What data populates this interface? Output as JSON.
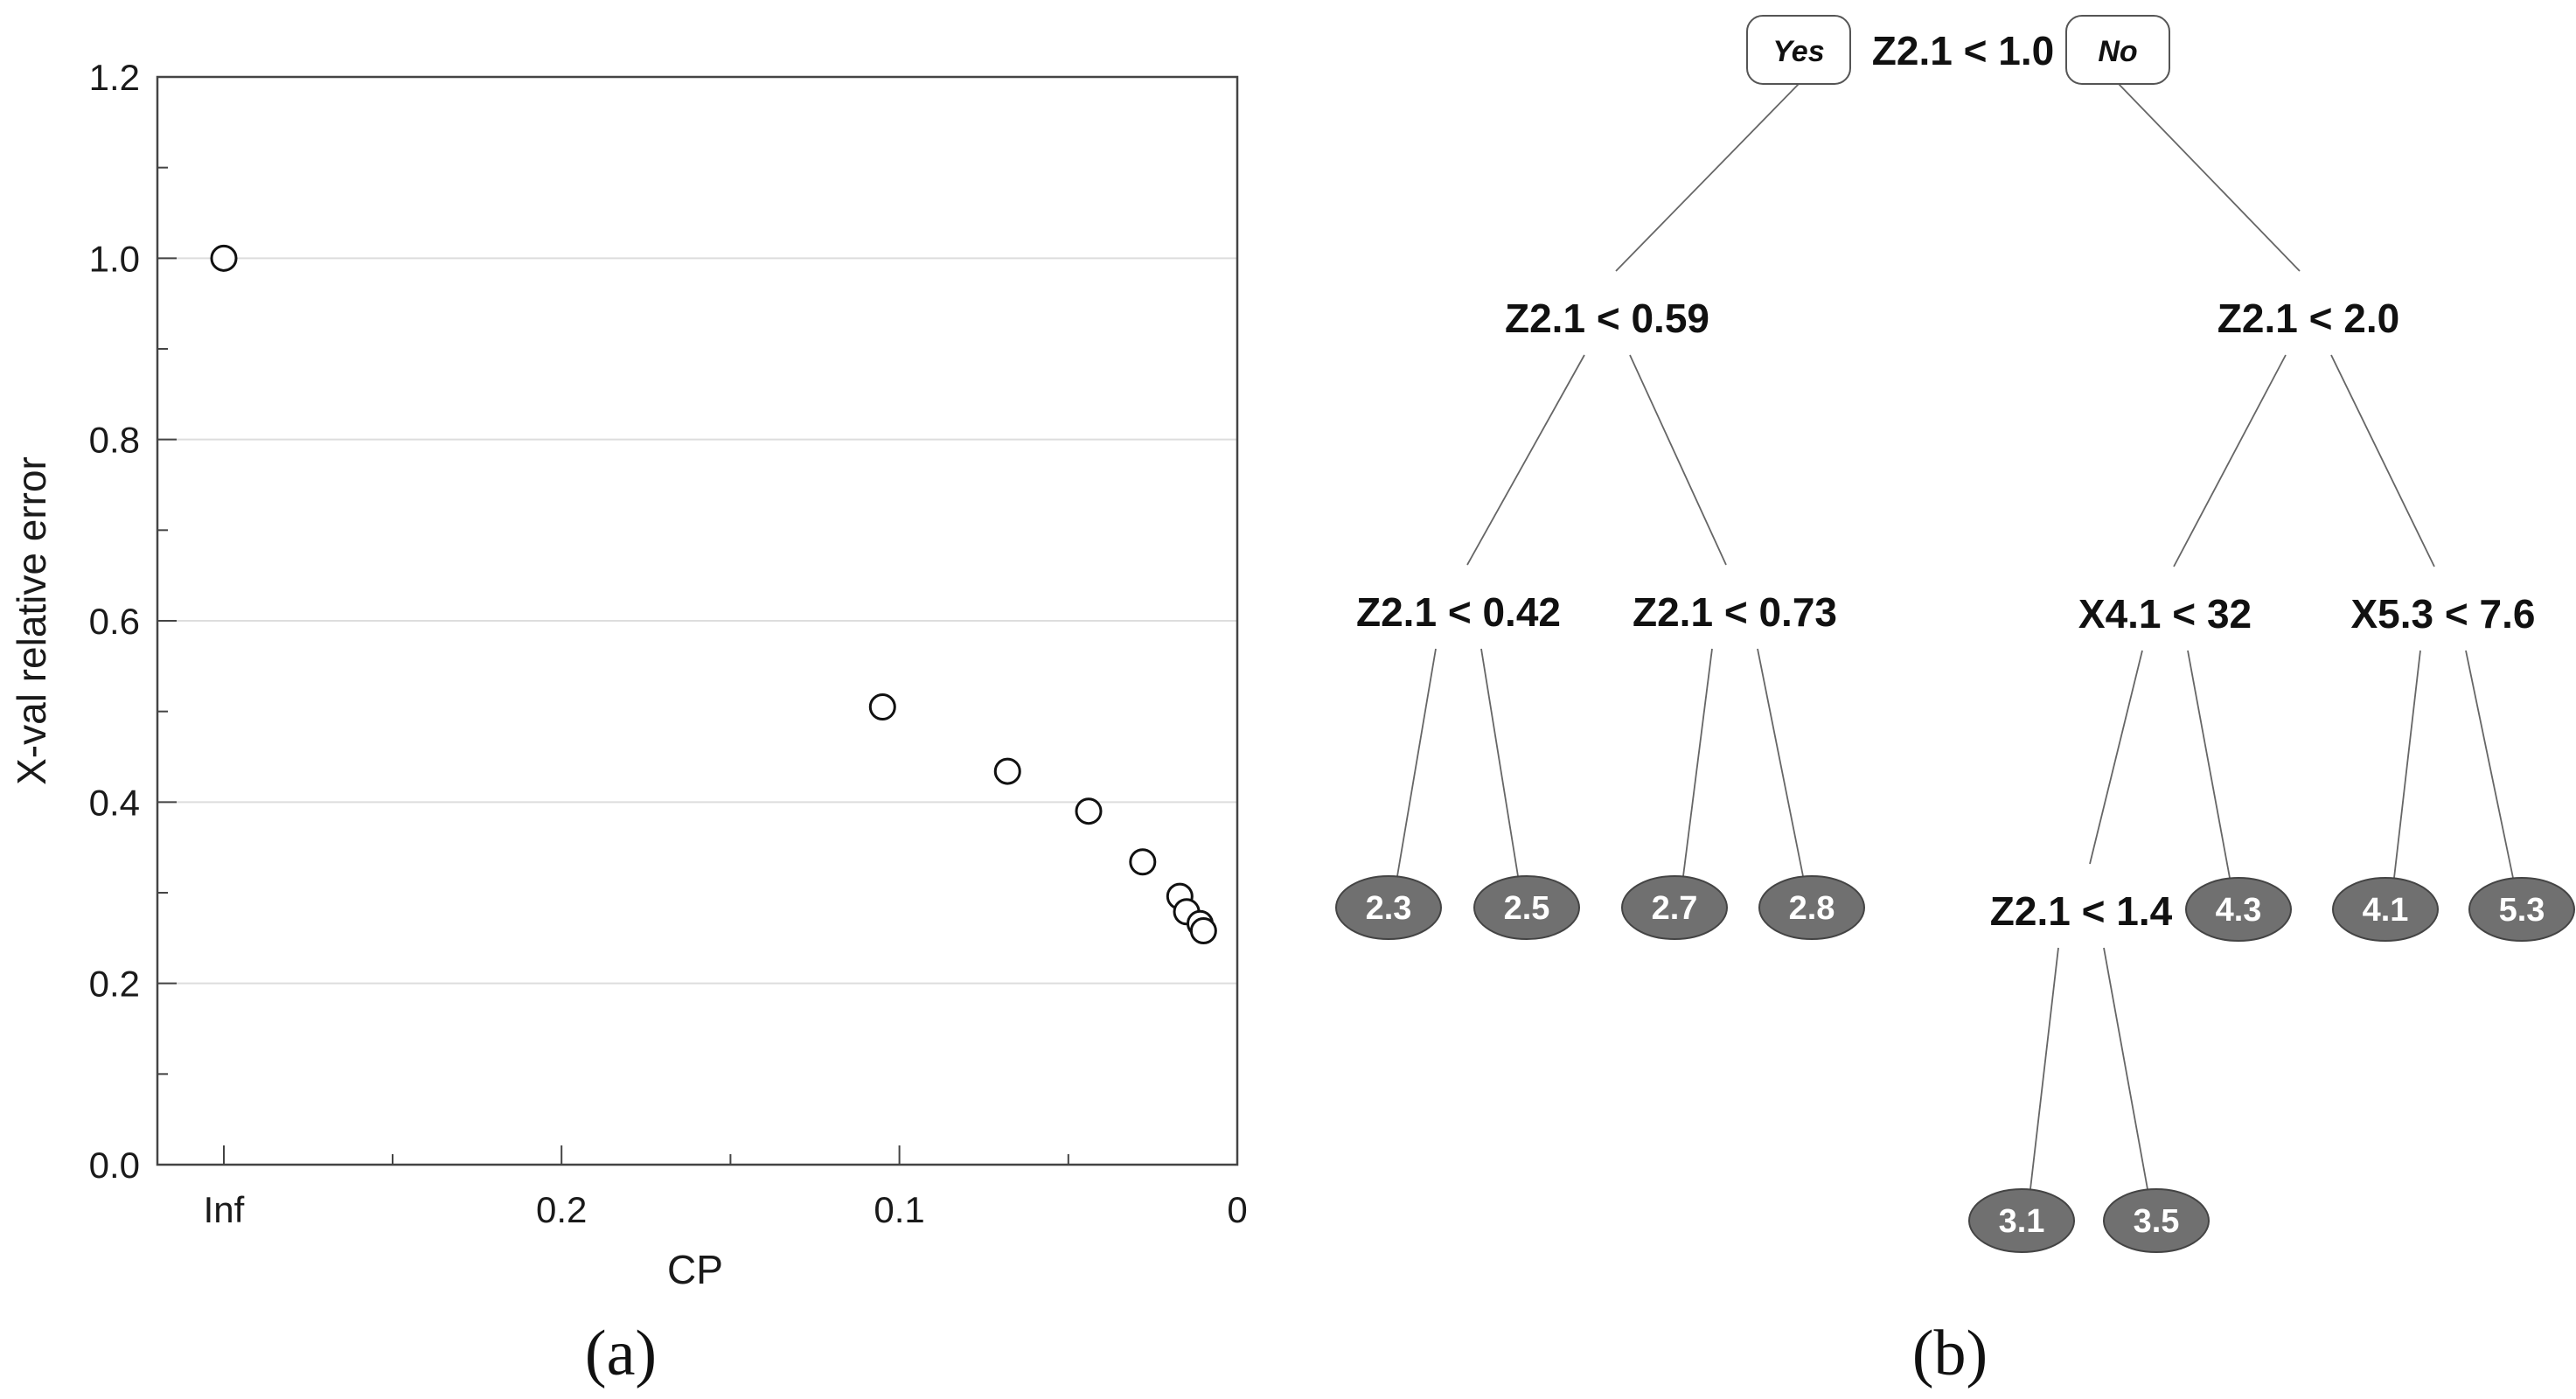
{
  "panels": {
    "a_label": "(a)",
    "b_label": "(b)"
  },
  "chart_data": [
    {
      "type": "scatter",
      "title": "",
      "xlabel": "CP",
      "ylabel": "X-val relative error",
      "x_tick_labels": [
        "Inf",
        "0.2",
        "0.1",
        "0"
      ],
      "y_tick_labels": [
        "0.0",
        "0.2",
        "0.4",
        "0.6",
        "0.8",
        "1.0",
        "1.2"
      ],
      "xlim": [
        0.29,
        0
      ],
      "ylim": [
        0,
        1.2
      ],
      "grid": "horizontal",
      "marker": "open-circle",
      "points": [
        {
          "x": "Inf",
          "y": 1.0
        },
        {
          "x": 0.105,
          "y": 0.505
        },
        {
          "x": 0.068,
          "y": 0.434
        },
        {
          "x": 0.044,
          "y": 0.39
        },
        {
          "x": 0.028,
          "y": 0.334
        },
        {
          "x": 0.017,
          "y": 0.296
        },
        {
          "x": 0.015,
          "y": 0.279
        },
        {
          "x": 0.011,
          "y": 0.266
        },
        {
          "x": 0.01,
          "y": 0.258
        }
      ]
    },
    {
      "type": "tree",
      "root_badges": {
        "yes": "Yes",
        "no": "No"
      },
      "nodes": [
        {
          "id": "n1",
          "label": "Z2.1 < 1.0",
          "kind": "split"
        },
        {
          "id": "n2",
          "label": "Z2.1 < 0.59",
          "kind": "split",
          "parent": "n1"
        },
        {
          "id": "n3",
          "label": "Z2.1 < 2.0",
          "kind": "split",
          "parent": "n1"
        },
        {
          "id": "n4",
          "label": "Z2.1 < 0.42",
          "kind": "split",
          "parent": "n2"
        },
        {
          "id": "n5",
          "label": "Z2.1 < 0.73",
          "kind": "split",
          "parent": "n2"
        },
        {
          "id": "n6",
          "label": "X4.1 < 32",
          "kind": "split",
          "parent": "n3"
        },
        {
          "id": "n7",
          "label": "X5.3 < 7.6",
          "kind": "split",
          "parent": "n3"
        },
        {
          "id": "n8",
          "label": "Z2.1 < 1.4",
          "kind": "split",
          "parent": "n6"
        },
        {
          "id": "l1",
          "label": "2.3",
          "kind": "leaf",
          "parent": "n4"
        },
        {
          "id": "l2",
          "label": "2.5",
          "kind": "leaf",
          "parent": "n4"
        },
        {
          "id": "l3",
          "label": "2.7",
          "kind": "leaf",
          "parent": "n5"
        },
        {
          "id": "l4",
          "label": "2.8",
          "kind": "leaf",
          "parent": "n5"
        },
        {
          "id": "l5",
          "label": "4.3",
          "kind": "leaf",
          "parent": "n6"
        },
        {
          "id": "l6",
          "label": "4.1",
          "kind": "leaf",
          "parent": "n7"
        },
        {
          "id": "l7",
          "label": "5.3",
          "kind": "leaf",
          "parent": "n7"
        },
        {
          "id": "l8",
          "label": "3.1",
          "kind": "leaf",
          "parent": "n8"
        },
        {
          "id": "l9",
          "label": "3.5",
          "kind": "leaf",
          "parent": "n8"
        }
      ]
    }
  ]
}
